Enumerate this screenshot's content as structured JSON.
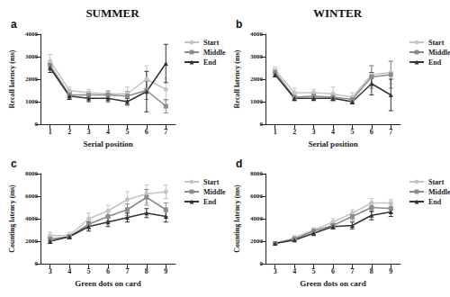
{
  "chart_data": [
    {
      "type": "line",
      "title": "SUMMER",
      "annotations": [
        "a"
      ],
      "xlabel": "Serial position",
      "ylabel": "Recall latency (ms)",
      "categories": [
        "1",
        "2",
        "3",
        "4",
        "5",
        "6",
        "7"
      ],
      "series": [
        {
          "name": "Start",
          "color": "#c4c4c4",
          "marker": "circle",
          "line_style": "solid",
          "values": [
            2800,
            1500,
            1400,
            1350,
            1350,
            2000,
            1550
          ],
          "errors": [
            300,
            150,
            150,
            150,
            300,
            600,
            500
          ]
        },
        {
          "name": "Middle",
          "color": "#8a8a8a",
          "marker": "square",
          "line_style": "solid",
          "values": [
            2600,
            1300,
            1300,
            1300,
            1250,
            1500,
            800
          ],
          "errors": [
            200,
            150,
            150,
            150,
            200,
            400,
            300
          ]
        },
        {
          "name": "End",
          "color": "#333333",
          "marker": "triangle",
          "line_style": "solid",
          "values": [
            2500,
            1250,
            1150,
            1150,
            1000,
            1450,
            2700
          ],
          "errors": [
            200,
            150,
            150,
            150,
            150,
            900,
            850
          ]
        }
      ],
      "ylim": [
        0,
        4000
      ],
      "yticks": [
        0,
        1000,
        2000,
        3000,
        4000
      ],
      "grid": false,
      "legend": "upper right"
    },
    {
      "type": "line",
      "title": "WINTER",
      "annotations": [
        "b"
      ],
      "xlabel": "Serial position",
      "ylabel": "Recall latency (ms)",
      "categories": [
        "1",
        "2",
        "3",
        "4",
        "5",
        "6",
        "7"
      ],
      "series": [
        {
          "name": "Start",
          "color": "#c4c4c4",
          "marker": "circle",
          "line_style": "solid",
          "values": [
            2400,
            1400,
            1400,
            1350,
            1200,
            2200,
            2300
          ],
          "errors": [
            150,
            200,
            150,
            300,
            200,
            400,
            500
          ]
        },
        {
          "name": "Middle",
          "color": "#8a8a8a",
          "marker": "square",
          "line_style": "solid",
          "values": [
            2300,
            1200,
            1250,
            1200,
            1100,
            2100,
            2200
          ],
          "errors": [
            150,
            150,
            150,
            150,
            150,
            500,
            600
          ]
        },
        {
          "name": "End",
          "color": "#333333",
          "marker": "triangle",
          "line_style": "solid",
          "values": [
            2200,
            1150,
            1150,
            1150,
            1000,
            1800,
            1300
          ],
          "errors": [
            100,
            100,
            100,
            100,
            100,
            500,
            700
          ]
        }
      ],
      "ylim": [
        0,
        4000
      ],
      "yticks": [
        0,
        1000,
        2000,
        3000,
        4000
      ],
      "grid": false,
      "legend": "upper right"
    },
    {
      "type": "line",
      "annotations": [
        "c"
      ],
      "xlabel": "Green dots on card",
      "ylabel": "Counting latency (ms)",
      "categories": [
        "3",
        "4",
        "5",
        "6",
        "7",
        "8",
        "9"
      ],
      "series": [
        {
          "name": "Start",
          "color": "#c4c4c4",
          "marker": "circle",
          "line_style": "solid",
          "values": [
            2500,
            2500,
            4000,
            4700,
            5700,
            6200,
            6400
          ],
          "errors": [
            300,
            300,
            500,
            500,
            700,
            800,
            600
          ]
        },
        {
          "name": "Middle",
          "color": "#8a8a8a",
          "marker": "square",
          "line_style": "solid",
          "values": [
            2200,
            2400,
            3500,
            4200,
            4800,
            5900,
            4800
          ],
          "errors": [
            200,
            200,
            400,
            400,
            500,
            700,
            600
          ]
        },
        {
          "name": "End",
          "color": "#333333",
          "marker": "triangle",
          "line_style": "solid",
          "values": [
            2000,
            2400,
            3300,
            3700,
            4100,
            4500,
            4200
          ],
          "errors": [
            200,
            200,
            400,
            400,
            400,
            400,
            500
          ]
        }
      ],
      "ylim": [
        0,
        8000
      ],
      "yticks": [
        0,
        2000,
        4000,
        6000,
        8000
      ],
      "grid": false,
      "legend": "upper right"
    },
    {
      "type": "line",
      "annotations": [
        "d"
      ],
      "xlabel": "Green dots on card",
      "ylabel": "Counting latency (ms)",
      "categories": [
        "3",
        "4",
        "5",
        "6",
        "7",
        "8",
        "9"
      ],
      "series": [
        {
          "name": "Start",
          "color": "#c4c4c4",
          "marker": "circle",
          "line_style": "solid",
          "values": [
            1800,
            2300,
            3000,
            3700,
            4500,
            5400,
            5400
          ],
          "errors": [
            100,
            200,
            200,
            300,
            300,
            400,
            300
          ]
        },
        {
          "name": "Middle",
          "color": "#8a8a8a",
          "marker": "square",
          "line_style": "solid",
          "values": [
            1800,
            2200,
            2900,
            3400,
            4200,
            5000,
            4900
          ],
          "errors": [
            100,
            150,
            200,
            300,
            300,
            400,
            400
          ]
        },
        {
          "name": "End",
          "color": "#333333",
          "marker": "triangle",
          "line_style": "solid",
          "values": [
            1800,
            2100,
            2700,
            3300,
            3400,
            4300,
            4600
          ],
          "errors": [
            100,
            150,
            200,
            200,
            300,
            400,
            400
          ]
        }
      ],
      "ylim": [
        0,
        8000
      ],
      "yticks": [
        0,
        2000,
        4000,
        6000,
        8000
      ],
      "grid": false,
      "legend": "upper right"
    }
  ]
}
